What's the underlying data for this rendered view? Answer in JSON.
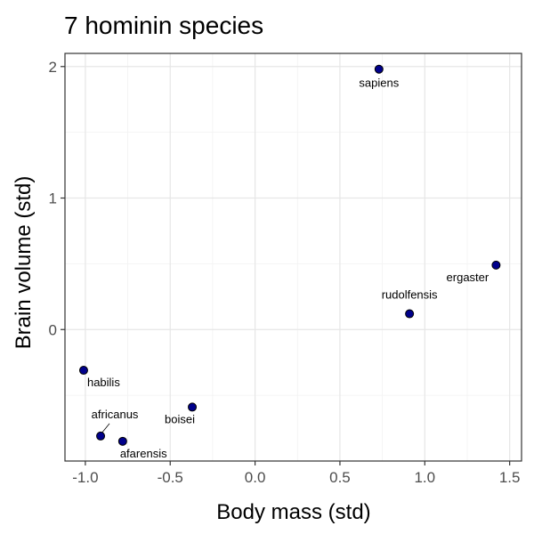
{
  "chart_data": {
    "type": "scatter",
    "title": "7 hominin species",
    "xlabel": "Body mass (std)",
    "ylabel": "Brain volume (std)",
    "xlim": [
      -1.12,
      1.57
    ],
    "ylim": [
      -1.0,
      2.1
    ],
    "x_ticks": [
      -1.0,
      -0.5,
      0.0,
      0.5,
      1.0,
      1.5
    ],
    "x_tick_labels": [
      "-1.0",
      "-0.5",
      "0.0",
      "0.5",
      "1.0",
      "1.5"
    ],
    "y_ticks": [
      0,
      1,
      2
    ],
    "y_tick_labels": [
      "0",
      "1",
      "2"
    ],
    "grid": true,
    "point_color": "#00008B",
    "points": [
      {
        "label": "afarensis",
        "x": -0.78,
        "y": -0.85,
        "label_pos": "below-right"
      },
      {
        "label": "africanus",
        "x": -0.91,
        "y": -0.81,
        "label_pos": "above-leader"
      },
      {
        "label": "habilis",
        "x": -1.01,
        "y": -0.31,
        "label_pos": "below-right"
      },
      {
        "label": "boisei",
        "x": -0.37,
        "y": -0.59,
        "label_pos": "below-left"
      },
      {
        "label": "rudolfensis",
        "x": 0.91,
        "y": 0.12,
        "label_pos": "above"
      },
      {
        "label": "ergaster",
        "x": 1.42,
        "y": 0.49,
        "label_pos": "below-left"
      },
      {
        "label": "sapiens",
        "x": 0.73,
        "y": 1.98,
        "label_pos": "below"
      }
    ]
  }
}
